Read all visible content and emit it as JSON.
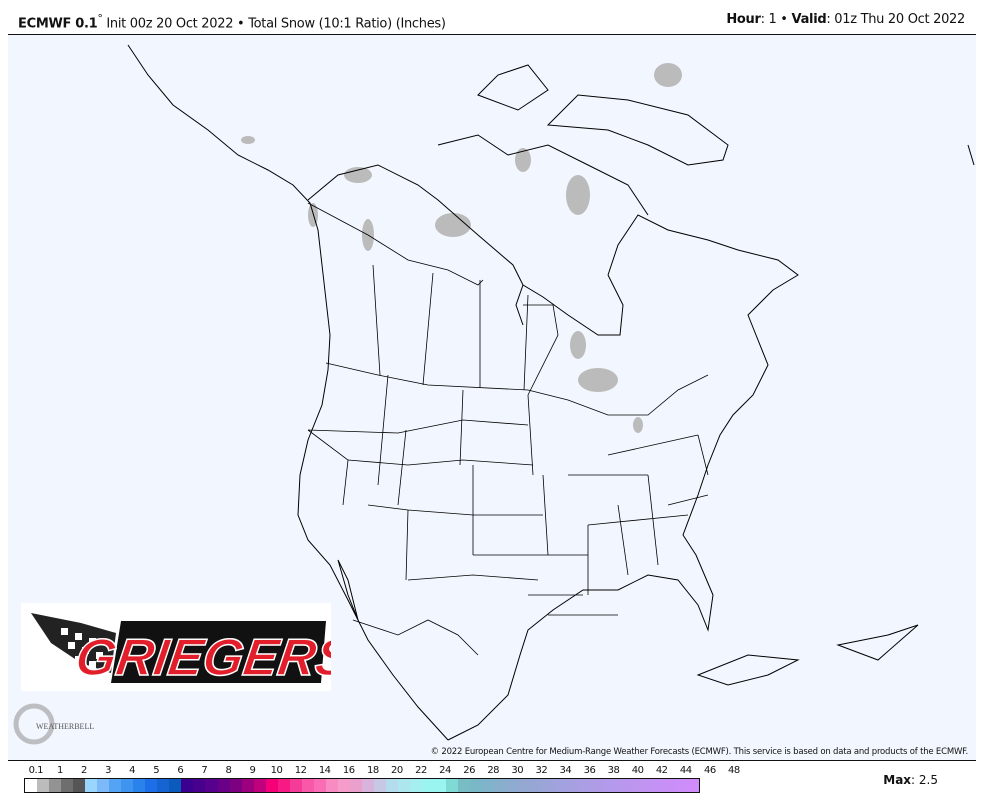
{
  "header": {
    "model": "ECMWF 0.1",
    "degree": "°",
    "init": " Init 00z 20 Oct 2022 • Total Snow (10:1 Ratio) (Inches)",
    "hour_label": "Hour",
    "hour": ": 1 • ",
    "valid_label": "Valid",
    "valid": ": 01z Thu 20 Oct 2022"
  },
  "map": {
    "region": "North America",
    "background_color": "#f2f6fe",
    "snow_color": "#bbbbbb",
    "copyright": "© 2022 European Centre for Medium-Range Weather Forecasts (ECMWF). This service is based on data and products of the ECMWF."
  },
  "logos": {
    "sponsor": "GRIEGERS",
    "provider": "WeatherBELL Analytics LLC"
  },
  "legend": {
    "labels": [
      "0.1",
      "1",
      "2",
      "3",
      "4",
      "5",
      "6",
      "7",
      "8",
      "9",
      "10",
      "12",
      "14",
      "16",
      "18",
      "20",
      "22",
      "24",
      "26",
      "28",
      "30",
      "32",
      "34",
      "36",
      "38",
      "40",
      "42",
      "44",
      "46",
      "48"
    ],
    "colors": [
      "#ffffff",
      "#bcbcbc",
      "#939393",
      "#6e6e6e",
      "#555555",
      "#9ad6fc",
      "#7bb9f8",
      "#55a4f4",
      "#3e94ee",
      "#2a83ec",
      "#1e6ee8",
      "#1564d2",
      "#0b5bbf",
      "#3c0090",
      "#47008e",
      "#57008e",
      "#6a0088",
      "#7d0080",
      "#9c007e",
      "#c0007c",
      "#f50078",
      "#f71a85",
      "#f63a98",
      "#f958a8",
      "#fa6db4",
      "#f98bc3",
      "#f69ccb",
      "#eaa0cc",
      "#d8b4dc",
      "#c6c8e4",
      "#b3dcec",
      "#aee6ee",
      "#a6eff0",
      "#9af5f0",
      "#9af5f0",
      "#7fd9d4",
      "#78bcc4",
      "#7ab8c8",
      "#80b4ca",
      "#88b0cc",
      "#8eaccf",
      "#94a8d2",
      "#98a6d6",
      "#9ca4da",
      "#a2a2de",
      "#a6a0e0",
      "#ac9ee4",
      "#b09ce6",
      "#b49aea",
      "#b898ec",
      "#bc96ee",
      "#c094f0",
      "#c492f4",
      "#c890f6",
      "#cc8ef8",
      "#d08cfa"
    ],
    "max_label": "Max",
    "max_value": ": 2.5"
  }
}
